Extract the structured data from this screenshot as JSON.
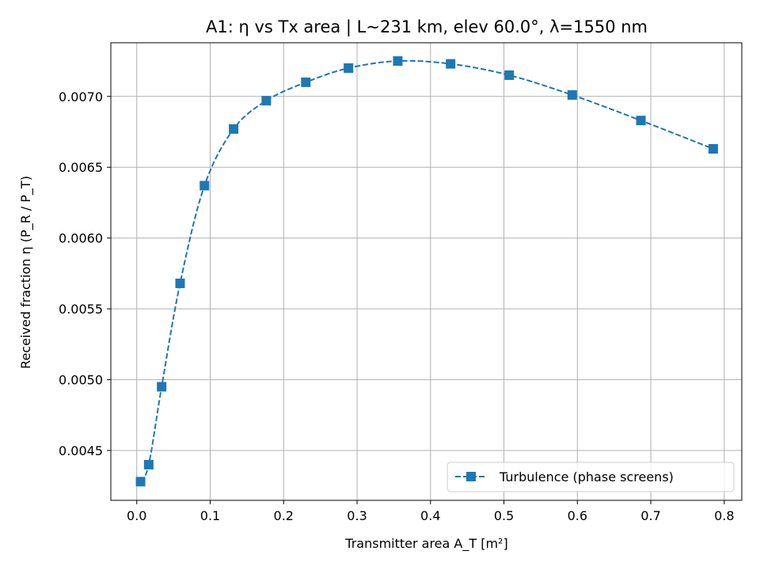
{
  "colors": {
    "series": "#1f77b4",
    "grid": "#b0b0b0",
    "axis": "#000000",
    "legend_border": "#cccccc"
  },
  "chart_data": {
    "type": "line",
    "title": "A1: η vs Tx area  |  L~231 km, elev 60.0°, λ=1550 nm",
    "xlabel": "Transmitter area A_T [m²]",
    "ylabel": "Received fraction η (P_R / P_T)",
    "xlim": [
      -0.0353,
      0.8239
    ],
    "ylim": [
      0.004148,
      0.007379
    ],
    "xticks": [
      0.0,
      0.1,
      0.2,
      0.3,
      0.4,
      0.5,
      0.6,
      0.7,
      0.8
    ],
    "xtick_labels": [
      "0.0",
      "0.1",
      "0.2",
      "0.3",
      "0.4",
      "0.5",
      "0.6",
      "0.7",
      "0.8"
    ],
    "yticks": [
      0.0045,
      0.005,
      0.0055,
      0.006,
      0.0065,
      0.007
    ],
    "ytick_labels": [
      "0.0045",
      "0.0050",
      "0.0055",
      "0.0060",
      "0.0065",
      "0.0070"
    ],
    "grid": true,
    "legend_position": "lower-right",
    "series": [
      {
        "name": "Turbulence (phase screens)",
        "line_style": "dashed",
        "marker": "square",
        "x": [
          0.0052,
          0.0163,
          0.0339,
          0.059,
          0.0922,
          0.1319,
          0.1764,
          0.2302,
          0.2883,
          0.3554,
          0.4274,
          0.5072,
          0.593,
          0.6865,
          0.785
        ],
        "y": [
          0.00428,
          0.0044,
          0.00495,
          0.00568,
          0.00637,
          0.00677,
          0.00697,
          0.0071,
          0.0072,
          0.00725,
          0.00723,
          0.00715,
          0.00701,
          0.00683,
          0.00663
        ]
      }
    ]
  }
}
